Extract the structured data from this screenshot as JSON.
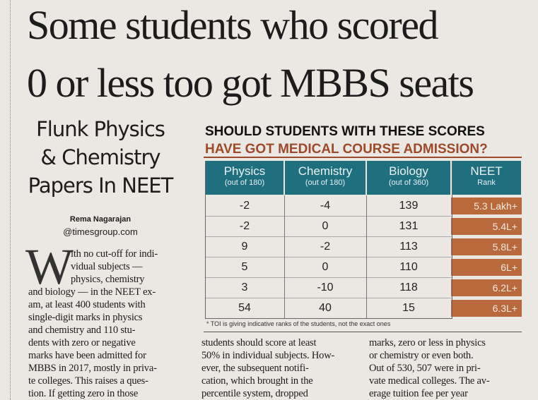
{
  "headline": [
    "Some students who scored",
    "0 or less too got MBBS seats"
  ],
  "subhead": [
    "Flunk Physics",
    "& Chemistry",
    "Papers In NEET"
  ],
  "byline": {
    "name": "Rema Nagarajan",
    "email": "@timesgroup.com"
  },
  "table": {
    "title": "SHOULD STUDENTS WITH THESE SCORES",
    "subtitle": "HAVE GOT MEDICAL COURSE ADMISSION?",
    "columns": [
      {
        "name": "Physics",
        "unit": "(out of 180)"
      },
      {
        "name": "Chemistry",
        "unit": "(out of 180)"
      },
      {
        "name": "Biology",
        "unit": "(out of 360)"
      },
      {
        "name": "NEET",
        "unit": "Rank"
      }
    ],
    "rows": [
      [
        -2,
        -4,
        139,
        "5.3 Lakh+"
      ],
      [
        -2,
        0,
        131,
        "5.4L+"
      ],
      [
        9,
        -2,
        113,
        "5.8L+"
      ],
      [
        5,
        0,
        110,
        "6L+"
      ],
      [
        3,
        -10,
        118,
        "6.2L+"
      ],
      [
        54,
        40,
        15,
        "6.3L+"
      ]
    ],
    "footnote": "* TOI is giving indicative ranks of the students, not the exact ones"
  },
  "body": {
    "drop_cap": "W",
    "columns": [
      [
        "ith no cut-off for indi-",
        "vidual subjects —",
        "physics, chemistry",
        "and biology — in the NEET ex-",
        "am, at least 400 students with",
        "single-digit marks in physics",
        "and chemistry and 110 stu-",
        "dents with zero or negative",
        "marks have been admitted for",
        "MBBS in 2017, mostly in priva-",
        "te colleges. This raises a ques-",
        "tion. If getting zero in those"
      ],
      [
        "students should score at least",
        "50% in individual subjects. How-",
        "ever, the subsequent notifi-",
        "cation, which brought in the",
        "percentile system, dropped"
      ],
      [
        "marks, zero or less in physics",
        "or chemistry or even both.",
        "Out of 530, 507 were in pri-",
        "vate medical colleges. The av-",
        "erage tuition fee per year"
      ]
    ]
  }
}
